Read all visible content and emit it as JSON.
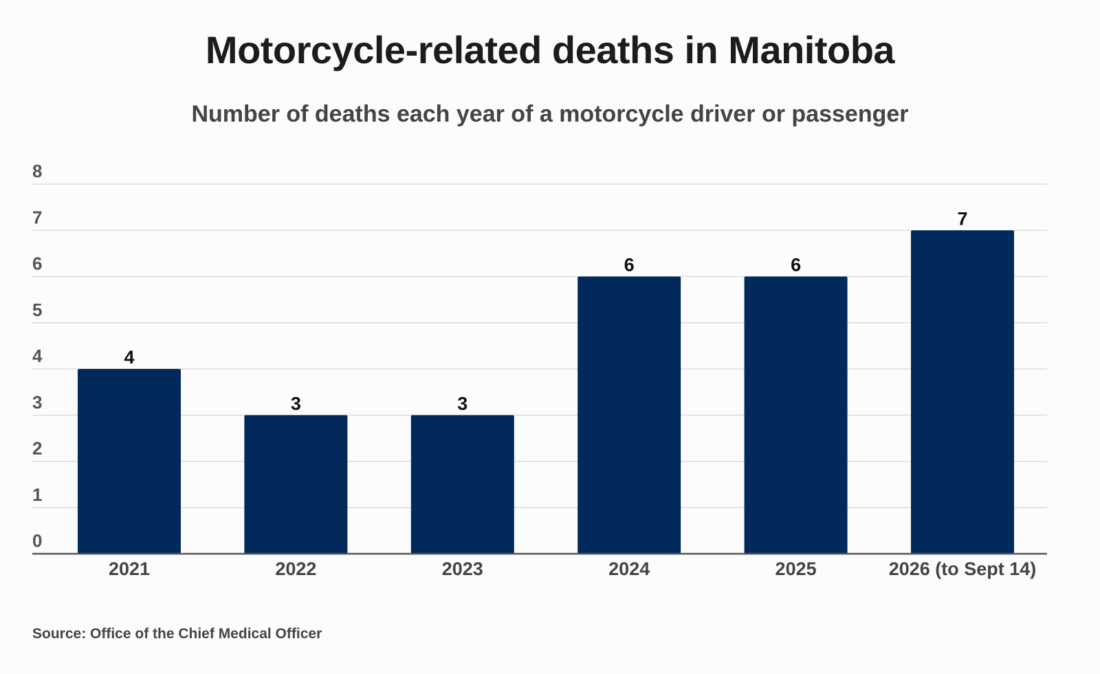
{
  "title": "Motorcycle-related deaths in Manitoba",
  "subtitle": "Number of deaths each year of a motorcycle driver or passenger",
  "source": "Source: Office of the Chief Medical Officer",
  "colors": {
    "bar": "#02295c",
    "grid": "#d6d6d6",
    "axis": "#555555"
  },
  "chart_data": {
    "type": "bar",
    "categories": [
      "2021",
      "2022",
      "2023",
      "2024",
      "2025",
      "2026 (to Sept 14)"
    ],
    "values": [
      4,
      3,
      3,
      6,
      6,
      7
    ],
    "data_labels": [
      "4",
      "3",
      "3",
      "6",
      "6",
      "7"
    ],
    "title": "Motorcycle-related deaths in Manitoba",
    "subtitle": "Number of deaths each year of a motorcycle driver or passenger",
    "ylim": [
      0,
      8
    ],
    "yticks": [
      0,
      1,
      2,
      3,
      4,
      5,
      6,
      7,
      8
    ],
    "grid": true,
    "legend": "none"
  }
}
